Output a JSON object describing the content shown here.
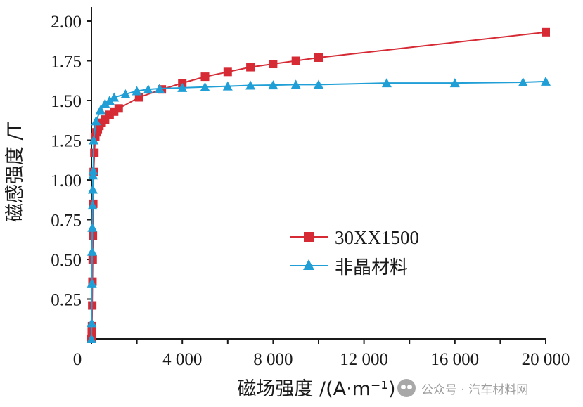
{
  "chart_data": {
    "type": "line",
    "xlabel": "磁场强度 /(A·m⁻¹)",
    "ylabel": "磁感强度 /T",
    "xlim": [
      0,
      20000
    ],
    "ylim": [
      0,
      2.0
    ],
    "x_tick_values": [
      0,
      4000,
      8000,
      12000,
      16000,
      20000
    ],
    "x_tick_labels": [
      "0",
      "4 000",
      "8 000",
      "12 000",
      "16 000",
      "20 000"
    ],
    "y_tick_values": [
      0.25,
      0.5,
      0.75,
      1.0,
      1.25,
      1.5,
      1.75,
      2.0
    ],
    "y_tick_labels": [
      "0.25",
      "0.50",
      "0.75",
      "1.00",
      "1.25",
      "1.50",
      "1.75",
      "2.00"
    ],
    "legend_position": "center-right",
    "series": [
      {
        "name": "30XX1500",
        "color": "#d62b35",
        "marker": "square",
        "x": [
          0,
          15,
          25,
          35,
          45,
          55,
          65,
          80,
          100,
          130,
          170,
          220,
          280,
          350,
          450,
          600,
          800,
          1000,
          1200,
          2100,
          3100,
          4000,
          5000,
          6000,
          7000,
          8000,
          9000,
          10000,
          20000
        ],
        "y": [
          0.0,
          0.04,
          0.08,
          0.21,
          0.36,
          0.5,
          0.65,
          0.85,
          1.05,
          1.17,
          1.27,
          1.3,
          1.32,
          1.34,
          1.36,
          1.38,
          1.41,
          1.43,
          1.45,
          1.52,
          1.57,
          1.61,
          1.65,
          1.68,
          1.71,
          1.73,
          1.75,
          1.77,
          1.93
        ]
      },
      {
        "name": "非晶材料",
        "color": "#1f9fd6",
        "marker": "triangle",
        "x": [
          0,
          10,
          20,
          30,
          40,
          50,
          60,
          70,
          80,
          100,
          200,
          400,
          600,
          800,
          1000,
          1500,
          2000,
          2500,
          3000,
          4000,
          5000,
          6000,
          7000,
          8000,
          9000,
          10000,
          13000,
          16000,
          19000,
          20000
        ],
        "y": [
          0.0,
          0.1,
          0.35,
          0.55,
          0.7,
          0.84,
          0.94,
          1.03,
          1.06,
          1.25,
          1.37,
          1.44,
          1.48,
          1.5,
          1.52,
          1.54,
          1.56,
          1.57,
          1.575,
          1.58,
          1.585,
          1.59,
          1.595,
          1.597,
          1.6,
          1.6,
          1.61,
          1.61,
          1.615,
          1.62
        ]
      }
    ]
  },
  "watermark": {
    "text": "公众号 · 汽车材料网",
    "icon": "wechat-icon"
  }
}
